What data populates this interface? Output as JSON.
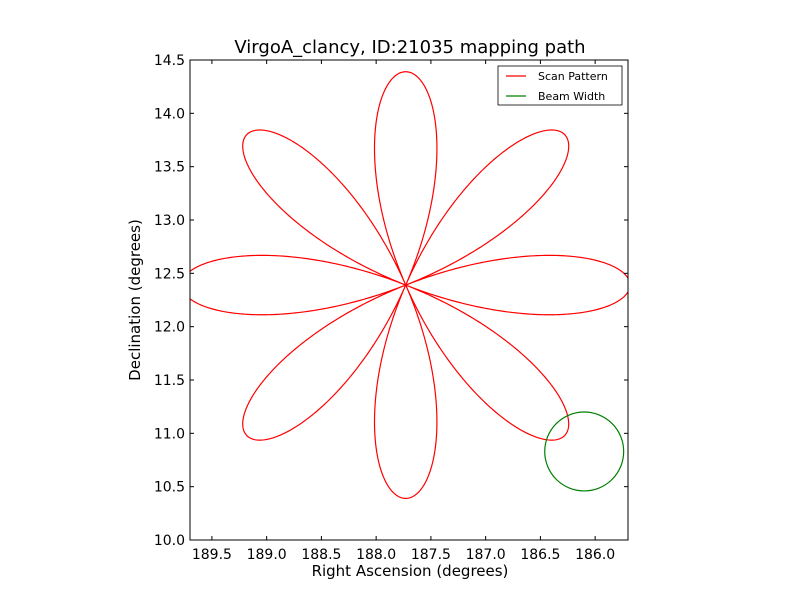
{
  "chart_data": {
    "type": "line",
    "title": "VirgoA_clancy, ID:21035 mapping path",
    "xlabel": "Right Ascension (degrees)",
    "ylabel": "Declination (degrees)",
    "xlim": [
      189.7,
      185.7
    ],
    "ylim": [
      10.0,
      14.5
    ],
    "x_inverted": true,
    "x_ticks": [
      189.5,
      189.0,
      188.5,
      188.0,
      187.5,
      187.0,
      186.5,
      186.0
    ],
    "x_tick_labels": [
      "189.5",
      "189.0",
      "188.5",
      "188.0",
      "187.5",
      "187.0",
      "186.5",
      "186.0"
    ],
    "y_ticks": [
      10.0,
      10.5,
      11.0,
      11.5,
      12.0,
      12.5,
      13.0,
      13.5,
      14.0,
      14.5
    ],
    "y_tick_labels": [
      "10.0",
      "10.5",
      "11.0",
      "11.5",
      "12.0",
      "12.5",
      "13.0",
      "13.5",
      "14.0",
      "14.5"
    ],
    "grid": false,
    "legend_position": "top-right",
    "series": [
      {
        "name": "Scan Pattern",
        "color": "#ff0000",
        "shape": "rose",
        "center_ra": 187.73,
        "center_dec": 12.39,
        "petals": 8,
        "petal_length_deg": 2.0
      },
      {
        "name": "Beam Width",
        "color": "#008000",
        "shape": "circle",
        "center_ra": 186.1,
        "center_dec": 10.83,
        "radius_deg": 0.37
      }
    ]
  }
}
